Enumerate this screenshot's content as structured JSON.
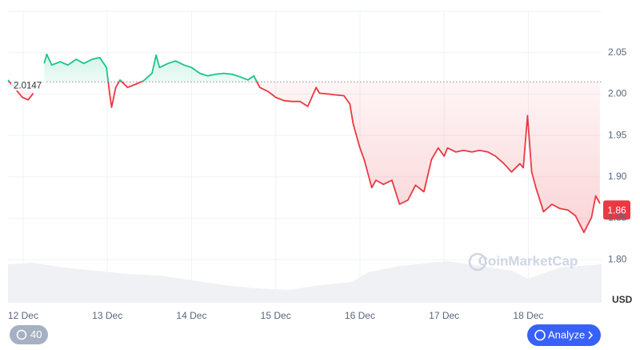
{
  "chart_data": {
    "type": "line",
    "x": [
      -0.18,
      -0.01,
      0.06,
      0.12,
      0.19,
      0.25,
      0.28,
      0.34,
      0.44,
      0.53,
      0.63,
      0.72,
      0.82,
      0.91,
      0.99,
      1.03,
      1.05,
      1.1,
      1.15,
      1.24,
      1.34,
      1.43,
      1.53,
      1.58,
      1.62,
      1.72,
      1.81,
      1.91,
      2.0,
      2.1,
      2.19,
      2.29,
      2.38,
      2.48,
      2.57,
      2.67,
      2.74,
      2.81,
      2.91,
      3.0,
      3.1,
      3.19,
      3.29,
      3.38,
      3.48,
      3.52,
      3.62,
      3.71,
      3.81,
      3.88,
      3.92,
      4.0,
      4.05,
      4.09,
      4.14,
      4.19,
      4.28,
      4.38,
      4.47,
      4.57,
      4.66,
      4.76,
      4.85,
      4.93,
      5.0,
      5.04,
      5.14,
      5.23,
      5.33,
      5.42,
      5.52,
      5.61,
      5.71,
      5.8,
      5.9,
      5.94,
      5.99,
      6.04,
      6.09,
      6.18,
      6.28,
      6.37,
      6.47,
      6.56,
      6.66,
      6.75,
      6.8,
      6.85
    ],
    "values": [
      2.017,
      1.996,
      1.993,
      2.001,
      null,
      2.037,
      2.048,
      2.035,
      2.039,
      2.035,
      2.042,
      2.037,
      2.042,
      2.044,
      2.032,
      1.998,
      1.984,
      2.008,
      2.017,
      2.008,
      2.012,
      2.016,
      2.025,
      2.047,
      2.032,
      2.037,
      2.04,
      2.035,
      2.032,
      2.025,
      2.022,
      2.024,
      2.025,
      2.024,
      2.021,
      2.017,
      2.022,
      2.008,
      2.003,
      1.996,
      1.992,
      1.991,
      1.991,
      1.985,
      2.008,
      2.001,
      2.0,
      1.999,
      1.998,
      1.988,
      1.964,
      1.935,
      1.921,
      1.906,
      1.887,
      1.896,
      1.891,
      1.896,
      1.867,
      1.872,
      1.89,
      1.882,
      1.921,
      1.935,
      1.925,
      1.935,
      1.93,
      1.932,
      1.93,
      1.932,
      1.93,
      1.925,
      1.916,
      1.906,
      1.916,
      1.911,
      1.974,
      1.906,
      1.887,
      1.858,
      1.867,
      1.862,
      1.86,
      1.853,
      1.833,
      1.851,
      1.877,
      1.868
    ],
    "up_color": "#16c784",
    "down_color": "#ea3943",
    "baseline": 2.0147,
    "current_price": 1.86,
    "y_unit_label": "USD",
    "watermark": "CoinMarketCap",
    "xlim": [
      -0.18,
      6.87
    ],
    "xticks": [
      {
        "value": 0,
        "label": "12 Dec"
      },
      {
        "value": 1,
        "label": "13 Dec"
      },
      {
        "value": 2,
        "label": "14 Dec"
      },
      {
        "value": 3,
        "label": "15 Dec"
      },
      {
        "value": 4,
        "label": "16 Dec"
      },
      {
        "value": 5,
        "label": "17 Dec"
      },
      {
        "value": 6,
        "label": "18 Dec"
      }
    ],
    "ylim": [
      1.75,
      2.1
    ],
    "yticks": [
      {
        "value": 1.8,
        "label": "1.80"
      },
      1.85,
      {
        "value": 1.9,
        "label": "1.90"
      },
      1.95,
      {
        "value": 2.0,
        "label": "2.00"
      },
      2.05
    ],
    "grid": true
  },
  "controls": {
    "history_badge": "40",
    "analyze_button": "Analyze"
  }
}
